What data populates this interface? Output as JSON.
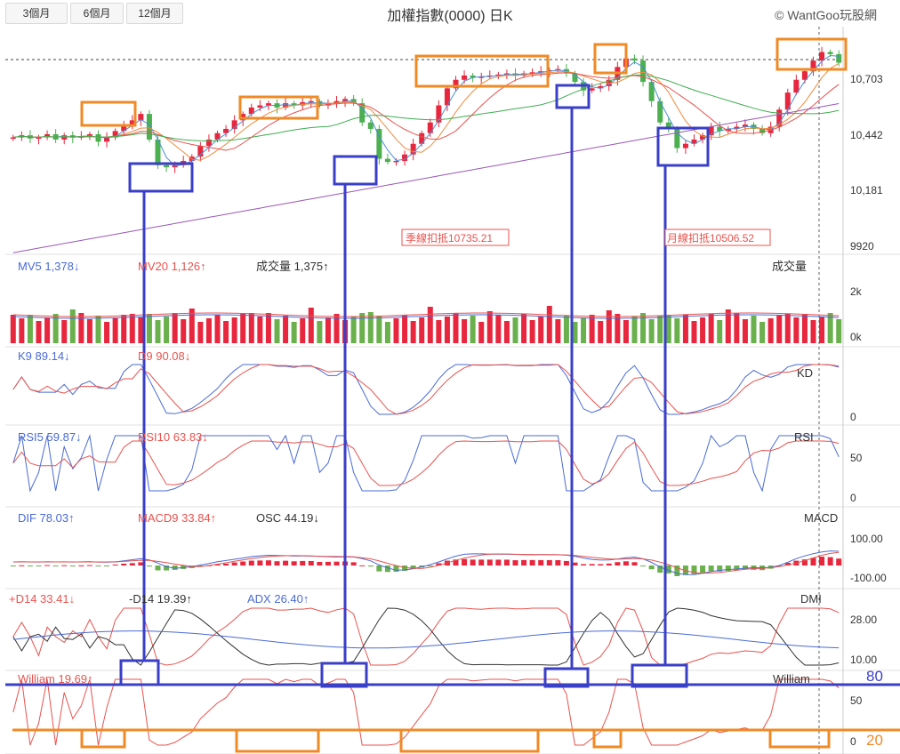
{
  "header": {
    "period_buttons": [
      "3個月",
      "6個月",
      "12個月"
    ],
    "title": "加權指數(0000) 日K",
    "copyright": "© WantGoo玩股網"
  },
  "price_panel": {
    "y_ticks": [
      "10,703",
      "10,442",
      "10,181",
      "9920"
    ],
    "annotations": [
      "季線扣抵10735.21",
      "月線扣抵10506.52"
    ],
    "ma_colors": [
      "#4a8fd6",
      "#f08a3c",
      "#e8534f",
      "#3fae52",
      "#9b59b6"
    ]
  },
  "volume_panel": {
    "legend": [
      "MV5 1,378↓",
      "MV20 1,126↑",
      "成交量 1,375↑"
    ],
    "label": "成交量",
    "y_ticks": [
      "2k",
      "0k"
    ]
  },
  "kd_panel": {
    "legend": [
      "K9 89.14↓",
      "D9 90.08↓"
    ],
    "label": "KD",
    "y_ticks": [
      "0"
    ]
  },
  "rsi_panel": {
    "legend": [
      "RSI5 59.87↓",
      "RSI10 63.83↓"
    ],
    "label": "RSI",
    "y_ticks": [
      "50",
      "0"
    ]
  },
  "macd_panel": {
    "legend": [
      "DIF 78.03↑",
      "MACD9 33.84↑",
      "OSC 44.19↓"
    ],
    "label": "MACD",
    "y_ticks": [
      "100.00",
      "-100.00"
    ]
  },
  "dmi_panel": {
    "legend": [
      "+D14 33.41↓",
      "-D14 19.39↑",
      "ADX 26.40↑"
    ],
    "label": "DMI",
    "y_ticks": [
      "28.00",
      "10.00"
    ]
  },
  "william_panel": {
    "legend": [
      "William 19.69↑"
    ],
    "label": "William",
    "y_ticks": [
      "50",
      "0"
    ]
  },
  "overlay": {
    "line_80_label": "80",
    "line_20_label": "20",
    "blue_color": "#3a3fc8",
    "orange_color": "#f08a25"
  },
  "chart_data": {
    "type": "candlestick",
    "title": "加權指數(0000) 日K",
    "price_ylim": [
      9800,
      10900
    ],
    "close": [
      10430,
      10440,
      10425,
      10430,
      10445,
      10420,
      10440,
      10430,
      10435,
      10445,
      10410,
      10430,
      10460,
      10490,
      10510,
      10540,
      10420,
      10300,
      10290,
      10300,
      10320,
      10340,
      10390,
      10420,
      10450,
      10470,
      10510,
      10540,
      10570,
      10580,
      10590,
      10570,
      10590,
      10580,
      10595,
      10600,
      10580,
      10590,
      10600,
      10610,
      10590,
      10500,
      10470,
      10330,
      10315,
      10320,
      10350,
      10400,
      10450,
      10500,
      10580,
      10660,
      10700,
      10720,
      10710,
      10715,
      10720,
      10725,
      10730,
      10720,
      10730,
      10735,
      10740,
      10745,
      10750,
      10730,
      10690,
      10650,
      10660,
      10670,
      10700,
      10760,
      10800,
      10790,
      10690,
      10600,
      10500,
      10470,
      10380,
      10400,
      10420,
      10440,
      10480,
      10460,
      10470,
      10480,
      10490,
      10470,
      10450,
      10480,
      10560,
      10640,
      10700,
      10740,
      10790,
      10830,
      10820,
      10780
    ],
    "y_ticks_price": [
      10703,
      10442,
      10181,
      9920
    ],
    "annotations": [
      "季線扣抵10735.21",
      "月線扣抵10506.52"
    ],
    "indicators": {
      "MV5": "1,378↓",
      "MV20": "1,126↑",
      "volume": "1,375↑",
      "K9": "89.14↓",
      "D9": "90.08↓",
      "RSI5": "59.87↓",
      "RSI10": "63.83↓",
      "DIF": "78.03↑",
      "MACD9": "33.84↑",
      "OSC": "44.19↓",
      "+D14": "33.41↓",
      "-D14": "19.39↑",
      "ADX": "26.40↑",
      "William": "19.69↑"
    },
    "reference_lines": [
      80,
      20
    ]
  }
}
